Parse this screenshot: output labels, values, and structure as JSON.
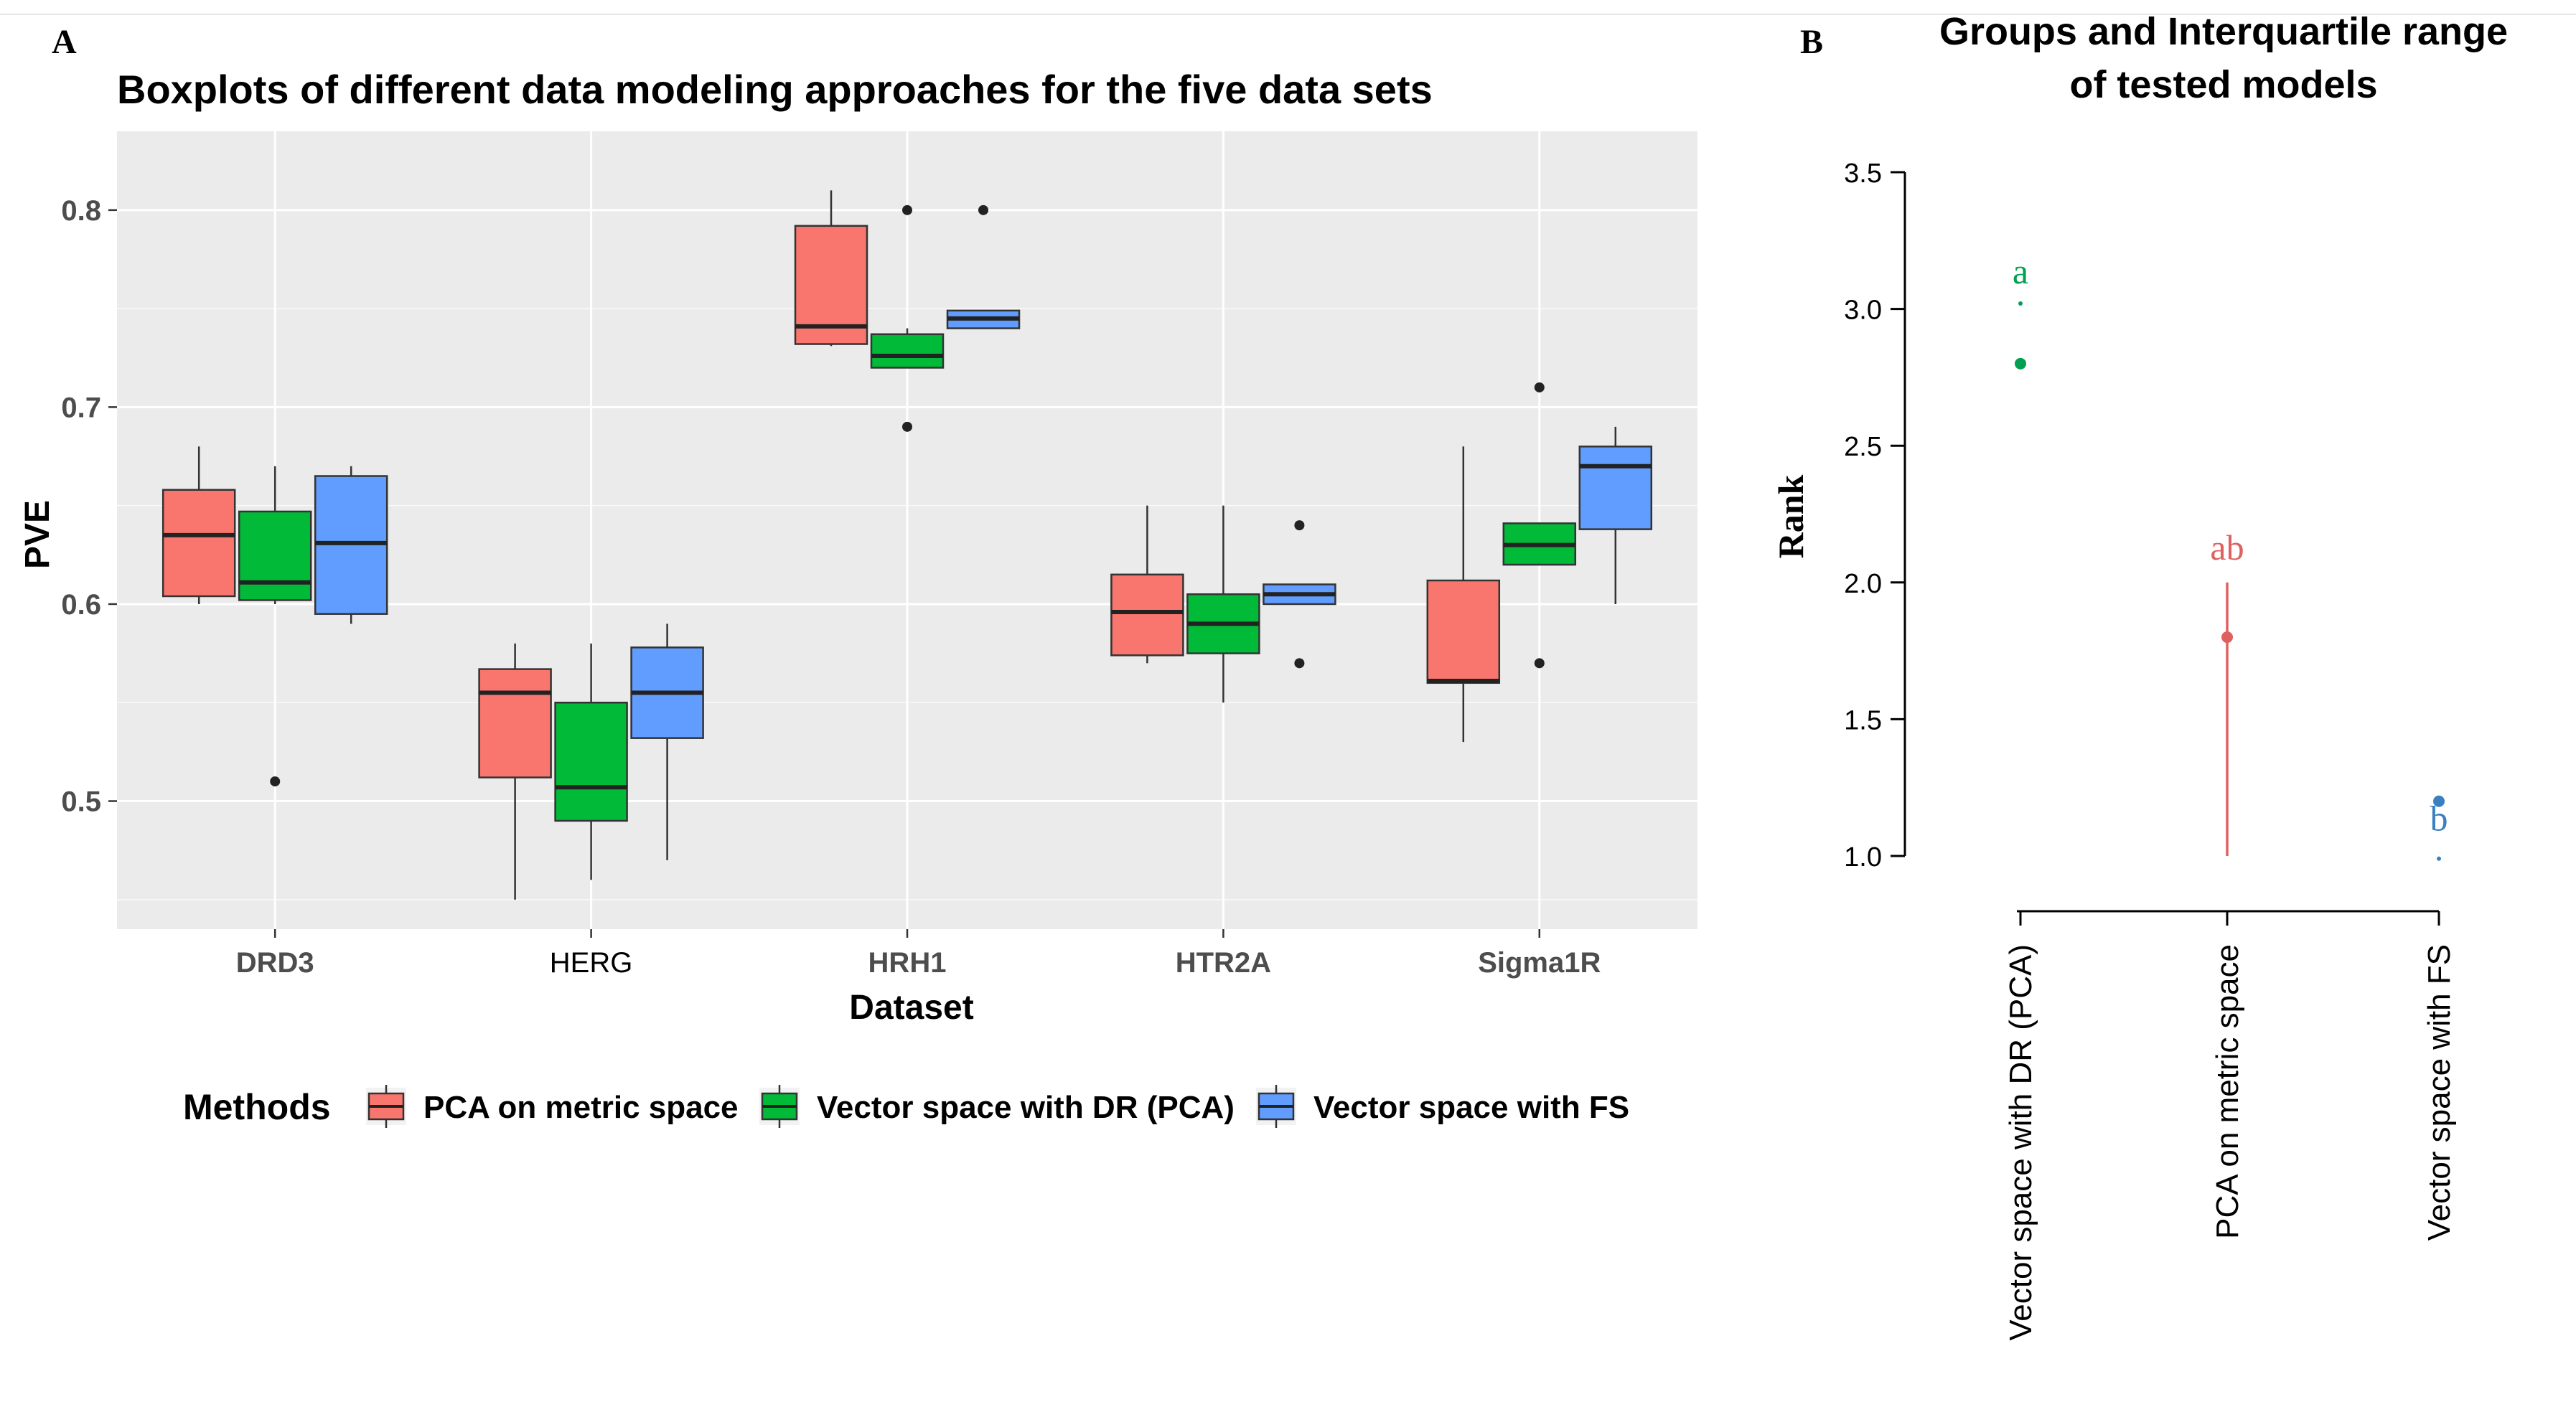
{
  "panel_labels": {
    "a": "A",
    "b": "B"
  },
  "colors": {
    "pca_metric": "#F8766D",
    "vector_dr": "#00BA38",
    "vector_fs": "#619CFF",
    "panel_bg": "#EBEBEB",
    "grid": "#FFFFFF",
    "group_a": "#00A050",
    "group_ab": "#E06060",
    "group_b": "#3A7FC0"
  },
  "chart_data": [
    {
      "type": "boxplot",
      "title": "Boxplots of different data modeling approaches for the five data sets",
      "xlabel": "Dataset",
      "ylabel": "PVE",
      "ylim": [
        0.435,
        0.84
      ],
      "yticks": [
        0.5,
        0.6,
        0.7,
        0.8
      ],
      "ytick_labels": [
        "0.5",
        "0.6",
        "0.7",
        "0.8"
      ],
      "categories": [
        "DRD3",
        "HERG",
        "HRH1",
        "HTR2A",
        "Sigma1R"
      ],
      "legend": {
        "title": "Methods",
        "position": "bottom",
        "entries": [
          "PCA on metric space",
          "Vector space with DR (PCA)",
          "Vector space with FS"
        ]
      },
      "series": [
        {
          "name": "PCA on metric space",
          "boxes": [
            {
              "min": 0.6,
              "q1": 0.604,
              "median": 0.635,
              "q3": 0.658,
              "max": 0.68,
              "outliers": []
            },
            {
              "min": 0.45,
              "q1": 0.512,
              "median": 0.555,
              "q3": 0.567,
              "max": 0.58,
              "outliers": []
            },
            {
              "min": 0.731,
              "q1": 0.732,
              "median": 0.741,
              "q3": 0.792,
              "max": 0.81,
              "outliers": []
            },
            {
              "min": 0.57,
              "q1": 0.574,
              "median": 0.596,
              "q3": 0.615,
              "max": 0.65,
              "outliers": []
            },
            {
              "min": 0.53,
              "q1": 0.56,
              "median": 0.561,
              "q3": 0.612,
              "max": 0.68,
              "outliers": []
            }
          ]
        },
        {
          "name": "Vector space with DR (PCA)",
          "boxes": [
            {
              "min": 0.6,
              "q1": 0.602,
              "median": 0.611,
              "q3": 0.647,
              "max": 0.67,
              "outliers": [
                0.51
              ]
            },
            {
              "min": 0.46,
              "q1": 0.49,
              "median": 0.507,
              "q3": 0.55,
              "max": 0.58,
              "outliers": []
            },
            {
              "min": 0.72,
              "q1": 0.72,
              "median": 0.726,
              "q3": 0.737,
              "max": 0.74,
              "outliers": [
                0.8,
                0.69
              ]
            },
            {
              "min": 0.55,
              "q1": 0.575,
              "median": 0.59,
              "q3": 0.605,
              "max": 0.65,
              "outliers": []
            },
            {
              "min": 0.62,
              "q1": 0.62,
              "median": 0.63,
              "q3": 0.641,
              "max": 0.641,
              "outliers": [
                0.71,
                0.57
              ]
            }
          ]
        },
        {
          "name": "Vector space with FS",
          "boxes": [
            {
              "min": 0.59,
              "q1": 0.595,
              "median": 0.631,
              "q3": 0.665,
              "max": 0.67,
              "outliers": []
            },
            {
              "min": 0.47,
              "q1": 0.532,
              "median": 0.555,
              "q3": 0.578,
              "max": 0.59,
              "outliers": []
            },
            {
              "min": 0.74,
              "q1": 0.74,
              "median": 0.745,
              "q3": 0.749,
              "max": 0.749,
              "outliers": [
                0.8
              ]
            },
            {
              "min": 0.6,
              "q1": 0.6,
              "median": 0.605,
              "q3": 0.61,
              "max": 0.61,
              "outliers": [
                0.64,
                0.57
              ]
            },
            {
              "min": 0.6,
              "q1": 0.638,
              "median": 0.67,
              "q3": 0.68,
              "max": 0.69,
              "outliers": []
            }
          ]
        }
      ]
    },
    {
      "type": "scatter",
      "title": "Groups and Interquartile range of tested models",
      "title_lines": [
        "Groups and Interquartile range",
        "of tested models"
      ],
      "xlabel": "",
      "ylabel": "Rank",
      "ylim": [
        0.9,
        3.6
      ],
      "yticks": [
        1.0,
        1.5,
        2.0,
        2.5,
        3.0,
        3.5
      ],
      "ytick_labels": [
        "1.0",
        "1.5",
        "2.0",
        "2.5",
        "3.0",
        "3.5"
      ],
      "categories": [
        "Vector space with DR (PCA)",
        "PCA on metric space",
        "Vector space with FS"
      ],
      "points": [
        {
          "category": "Vector space with DR (PCA)",
          "rank": 2.8,
          "low": 3.02,
          "high": 3.02,
          "group": "a"
        },
        {
          "category": "PCA on metric space",
          "rank": 1.8,
          "low": 1.0,
          "high": 2.0,
          "group": "ab"
        },
        {
          "category": "Vector space with FS",
          "rank": 1.2,
          "low": 0.99,
          "high": 0.99,
          "group": "b"
        }
      ],
      "group_labels": [
        "a",
        "ab",
        "b"
      ],
      "group_label_y": [
        3.14,
        2.13,
        1.14
      ]
    }
  ]
}
